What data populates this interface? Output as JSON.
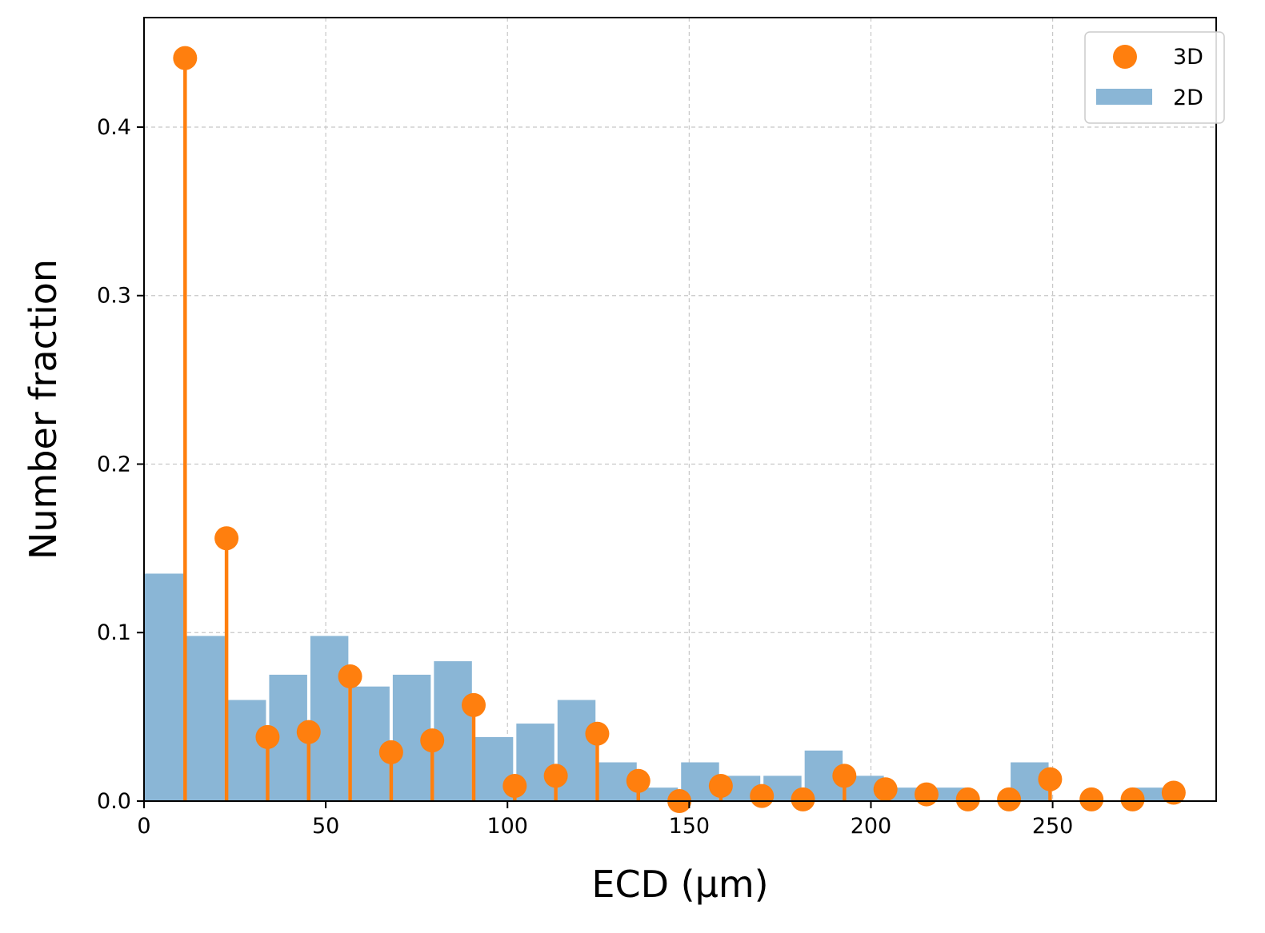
{
  "chart_data": {
    "type": "bar",
    "xlabel": "ECD (μm)",
    "ylabel": "Number fraction",
    "xlim": [
      0,
      295
    ],
    "ylim": [
      0,
      0.465
    ],
    "grid": true,
    "legend_position": "top-right",
    "xticks": [
      0,
      50,
      100,
      150,
      200,
      250
    ],
    "xtick_labels": [
      "0",
      "50",
      "100",
      "150",
      "200",
      "250"
    ],
    "yticks": [
      0.0,
      0.1,
      0.2,
      0.3,
      0.4
    ],
    "ytick_labels": [
      "0.0",
      "0.1",
      "0.2",
      "0.3",
      "0.4"
    ],
    "colors": {
      "bars_2d": "#8ab6d6",
      "stems_3d": "#ff7f0e"
    },
    "series": [
      {
        "name": "2D",
        "type": "bar",
        "bin_width": 11.33,
        "bin_left": [
          0,
          11.33,
          22.67,
          34.0,
          45.33,
          56.67,
          68.0,
          79.33,
          90.67,
          102.0,
          113.33,
          124.67,
          136.0,
          147.33,
          158.67,
          170.0,
          181.33,
          192.67,
          204.0,
          215.33,
          226.67,
          238.0,
          249.33,
          260.67,
          272.0
        ],
        "values": [
          0.135,
          0.098,
          0.06,
          0.075,
          0.098,
          0.068,
          0.075,
          0.083,
          0.038,
          0.046,
          0.06,
          0.023,
          0.008,
          0.023,
          0.015,
          0.015,
          0.03,
          0.015,
          0.008,
          0.008,
          0.0,
          0.023,
          0.0,
          0.0,
          0.008
        ]
      },
      {
        "name": "3D",
        "type": "stem",
        "x": [
          11.3,
          22.7,
          34.0,
          45.3,
          56.7,
          68.0,
          79.3,
          90.7,
          102.0,
          113.3,
          124.7,
          136.0,
          147.3,
          158.7,
          170.0,
          181.3,
          192.7,
          204.0,
          215.3,
          226.7,
          238.0,
          249.3,
          260.7,
          272.0,
          283.3
        ],
        "values": [
          0.441,
          0.156,
          0.038,
          0.041,
          0.074,
          0.029,
          0.036,
          0.057,
          0.009,
          0.015,
          0.04,
          0.012,
          0.0,
          0.009,
          0.003,
          0.001,
          0.015,
          0.007,
          0.004,
          0.001,
          0.001,
          0.013,
          0.001,
          0.001,
          0.005
        ]
      }
    ]
  }
}
